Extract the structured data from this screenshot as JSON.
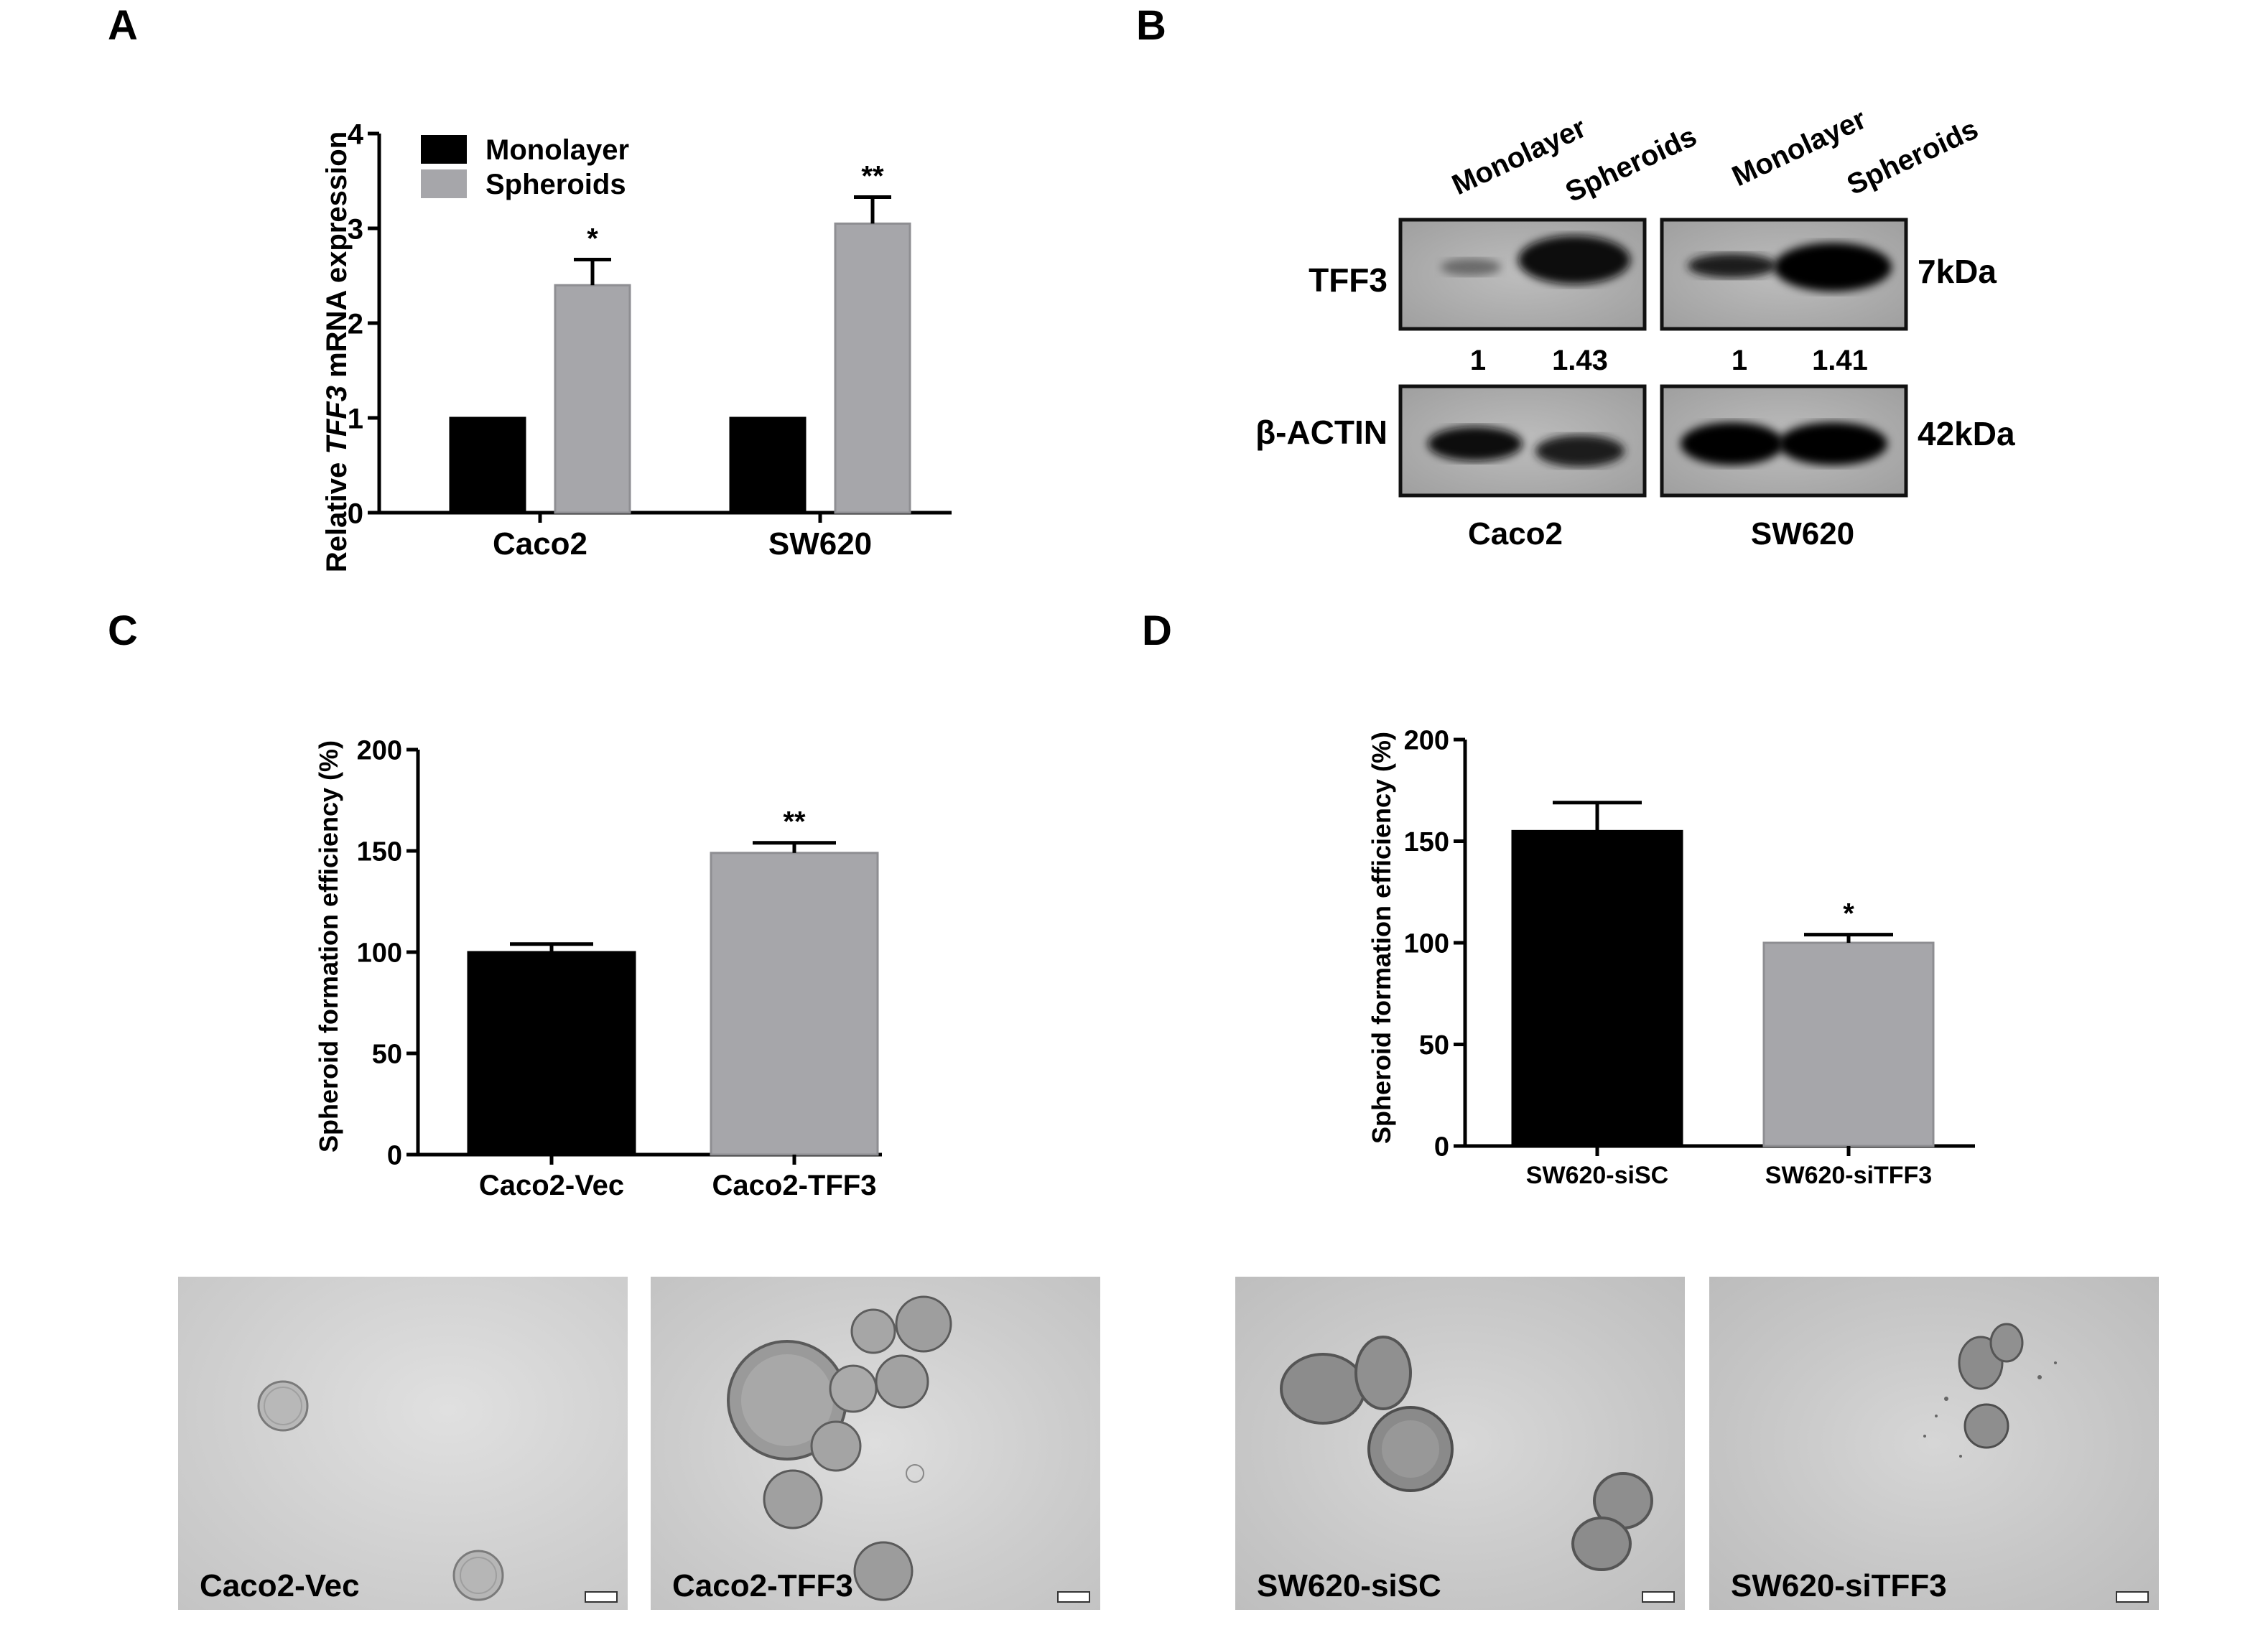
{
  "panels": {
    "A": {
      "letter": "A",
      "chart_data": {
        "type": "bar",
        "ylabel_prefix": "Relative ",
        "ylabel_gene": "TFF3",
        "ylabel_suffix": " mRNA expression",
        "categories": [
          "Caco2",
          "SW620"
        ],
        "ylim": [
          0,
          4
        ],
        "yticks": [
          "0",
          "1",
          "2",
          "3",
          "4"
        ],
        "series": [
          {
            "name": "Monolayer",
            "color": "#000000",
            "values": [
              1,
              1
            ],
            "errors": [
              0,
              0
            ],
            "sig": [
              "",
              ""
            ]
          },
          {
            "name": "Spheroids",
            "color": "#a6a6aa",
            "values": [
              2.4,
              3.05
            ],
            "errors": [
              0.27,
              0.28
            ],
            "sig": [
              "*",
              "**"
            ]
          }
        ],
        "legend_position": "top-left"
      }
    },
    "B": {
      "letter": "B",
      "lane_labels": [
        "Monolayer",
        "Spheroids",
        "Monolayer",
        "Spheroids"
      ],
      "rows": [
        {
          "label": "TFF3",
          "kda": "7kDa"
        },
        {
          "label": "β-ACTIN",
          "kda": "42kDa"
        }
      ],
      "quantification": [
        "1",
        "1.43",
        "1",
        "1.41"
      ],
      "cell_lines": [
        "Caco2",
        "SW620"
      ]
    },
    "C": {
      "letter": "C",
      "chart_data": {
        "type": "bar",
        "ylabel": "Spheroid formation efficiency (%)",
        "categories": [
          "Caco2-Vec",
          "Caco2-TFF3"
        ],
        "values": [
          100,
          149
        ],
        "errors": [
          4,
          5
        ],
        "colors": [
          "#000000",
          "#a6a6aa"
        ],
        "sig": [
          "",
          "**"
        ],
        "ylim": [
          0,
          200
        ],
        "yticks": [
          "0",
          "50",
          "100",
          "150",
          "200"
        ]
      },
      "images": [
        {
          "label": "Caco2-Vec"
        },
        {
          "label": "Caco2-TFF3"
        }
      ]
    },
    "D": {
      "letter": "D",
      "chart_data": {
        "type": "bar",
        "ylabel": "Spheroid formation efficiency (%)",
        "categories": [
          "SW620-siSC",
          "SW620-siTFF3"
        ],
        "values": [
          155,
          100
        ],
        "errors": [
          14,
          4
        ],
        "colors": [
          "#000000",
          "#a6a6aa"
        ],
        "sig": [
          "",
          "*"
        ],
        "ylim": [
          0,
          200
        ],
        "yticks": [
          "0",
          "50",
          "100",
          "150",
          "200"
        ]
      },
      "images": [
        {
          "label": "SW620-siSC"
        },
        {
          "label": "SW620-siTFF3"
        }
      ]
    }
  }
}
